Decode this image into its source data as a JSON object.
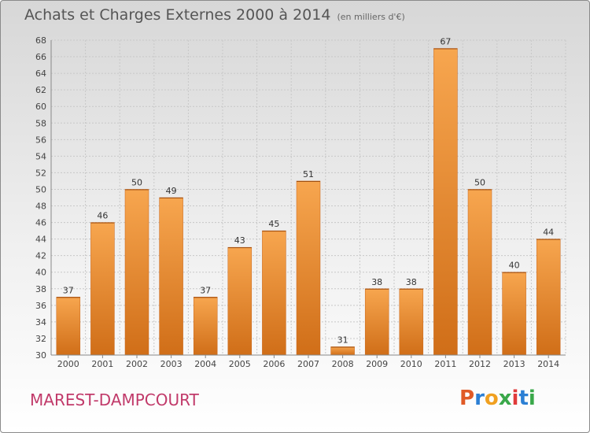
{
  "header": {
    "title": "Achats et Charges Externes 2000 à 2014",
    "unit_note": "(en milliers d'€)"
  },
  "footer": {
    "city": "MAREST-DAMPCOURT",
    "brand_letters": [
      "P",
      "r",
      "o",
      "x",
      "i",
      "t",
      "i"
    ]
  },
  "colors": {
    "bar_light": "#f7a64f",
    "bar_dark": "#d06e18",
    "city": "#c13a6a",
    "grid": "#c8c8c8"
  },
  "chart_data": {
    "type": "bar",
    "title": "Achats et Charges Externes 2000 à 2014",
    "subtitle": "(en milliers d'€)",
    "categories": [
      "2000",
      "2001",
      "2002",
      "2003",
      "2004",
      "2005",
      "2006",
      "2007",
      "2008",
      "2009",
      "2010",
      "2011",
      "2012",
      "2013",
      "2014"
    ],
    "values": [
      37,
      46,
      50,
      49,
      37,
      43,
      45,
      51,
      31,
      38,
      38,
      67,
      50,
      40,
      44
    ],
    "ylim": [
      30,
      68
    ],
    "yticks": [
      30,
      32,
      34,
      36,
      38,
      40,
      42,
      44,
      46,
      48,
      50,
      52,
      54,
      56,
      58,
      60,
      62,
      64,
      66,
      68
    ],
    "xlabel": "",
    "ylabel": "",
    "grid": true,
    "legend": "none"
  }
}
